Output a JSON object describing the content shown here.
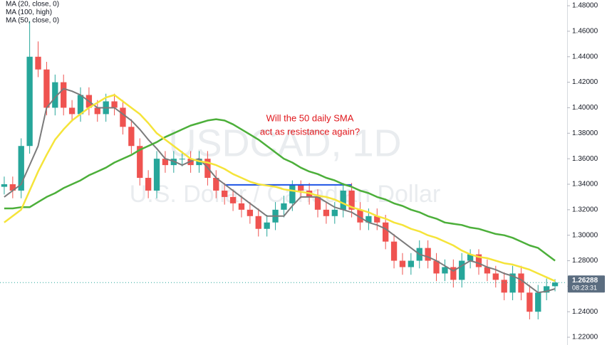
{
  "chart_data": {
    "type": "candlestick",
    "watermark": "USDCAD, 1D",
    "watermark_subtitle": "U.S. Dollar / Canadian Dollar",
    "annotation": [
      "Will the 50 daily SMA",
      "act as resistance again?"
    ],
    "annotation_color": "#e0161b",
    "up_color": "#26a69a",
    "down_color": "#ef5350",
    "open": [
      1.338,
      1.34,
      1.335,
      1.37,
      1.44,
      1.43,
      1.4,
      1.42,
      1.4,
      1.395,
      1.41,
      1.4,
      1.395,
      1.405,
      1.4,
      1.385,
      1.37,
      1.345,
      1.335,
      1.36,
      1.355,
      1.36,
      1.36,
      1.355,
      1.36,
      1.345,
      1.335,
      1.33,
      1.325,
      1.32,
      1.315,
      1.305,
      1.31,
      1.32,
      1.325,
      1.34,
      1.335,
      1.33,
      1.32,
      1.315,
      1.32,
      1.335,
      1.32,
      1.31,
      1.315,
      1.31,
      1.295,
      1.28,
      1.275,
      1.28,
      1.29,
      1.28,
      1.27,
      1.275,
      1.265,
      1.28,
      1.285,
      1.275,
      1.27,
      1.265,
      1.255,
      1.27,
      1.255,
      1.24,
      1.255,
      1.26
    ],
    "high": [
      1.346,
      1.346,
      1.376,
      1.468,
      1.452,
      1.436,
      1.426,
      1.426,
      1.406,
      1.416,
      1.416,
      1.406,
      1.411,
      1.411,
      1.406,
      1.391,
      1.376,
      1.351,
      1.366,
      1.366,
      1.366,
      1.366,
      1.366,
      1.366,
      1.366,
      1.351,
      1.341,
      1.336,
      1.331,
      1.326,
      1.321,
      1.316,
      1.326,
      1.331,
      1.343,
      1.343,
      1.341,
      1.336,
      1.326,
      1.326,
      1.341,
      1.341,
      1.326,
      1.321,
      1.321,
      1.316,
      1.301,
      1.286,
      1.286,
      1.296,
      1.296,
      1.286,
      1.281,
      1.281,
      1.286,
      1.289,
      1.289,
      1.281,
      1.276,
      1.271,
      1.276,
      1.276,
      1.261,
      1.261,
      1.266,
      1.2655
    ],
    "low": [
      1.332,
      1.329,
      1.329,
      1.364,
      1.424,
      1.394,
      1.394,
      1.394,
      1.389,
      1.389,
      1.394,
      1.389,
      1.389,
      1.394,
      1.379,
      1.364,
      1.339,
      1.329,
      1.329,
      1.349,
      1.349,
      1.354,
      1.349,
      1.349,
      1.339,
      1.329,
      1.324,
      1.319,
      1.314,
      1.309,
      1.299,
      1.299,
      1.304,
      1.314,
      1.319,
      1.329,
      1.324,
      1.314,
      1.309,
      1.309,
      1.314,
      1.314,
      1.304,
      1.304,
      1.304,
      1.289,
      1.274,
      1.269,
      1.269,
      1.274,
      1.274,
      1.264,
      1.264,
      1.259,
      1.259,
      1.274,
      1.269,
      1.264,
      1.259,
      1.249,
      1.249,
      1.249,
      1.234,
      1.234,
      1.249,
      1.256
    ],
    "close": [
      1.34,
      1.335,
      1.37,
      1.44,
      1.43,
      1.4,
      1.42,
      1.4,
      1.395,
      1.41,
      1.4,
      1.395,
      1.405,
      1.4,
      1.385,
      1.37,
      1.345,
      1.335,
      1.36,
      1.355,
      1.36,
      1.36,
      1.355,
      1.36,
      1.345,
      1.335,
      1.33,
      1.325,
      1.32,
      1.315,
      1.305,
      1.31,
      1.32,
      1.325,
      1.34,
      1.335,
      1.33,
      1.32,
      1.315,
      1.32,
      1.335,
      1.32,
      1.31,
      1.315,
      1.31,
      1.295,
      1.28,
      1.275,
      1.28,
      1.29,
      1.28,
      1.27,
      1.275,
      1.265,
      1.28,
      1.285,
      1.275,
      1.27,
      1.265,
      1.255,
      1.27,
      1.255,
      1.24,
      1.255,
      1.26,
      1.2629
    ],
    "series": [
      {
        "name": "MA (20, close, 0)",
        "color": "#7b7b7b",
        "values": [
          1.33,
          1.335,
          1.34,
          1.355,
          1.37,
          1.4,
          1.408,
          1.415,
          1.413,
          1.41,
          1.405,
          1.4,
          1.4,
          1.4,
          1.395,
          1.39,
          1.383,
          1.375,
          1.368,
          1.36,
          1.358,
          1.355,
          1.358,
          1.36,
          1.353,
          1.345,
          1.34,
          1.335,
          1.33,
          1.325,
          1.32,
          1.315,
          1.315,
          1.315,
          1.323,
          1.33,
          1.33,
          1.33,
          1.326,
          1.322,
          1.32,
          1.318,
          1.314,
          1.31,
          1.308,
          1.305,
          1.3,
          1.295,
          1.29,
          1.285,
          1.283,
          1.28,
          1.276,
          1.272,
          1.276,
          1.28,
          1.278,
          1.275,
          1.273,
          1.27,
          1.268,
          1.265,
          1.26,
          1.255,
          1.256,
          1.258
        ]
      },
      {
        "name": "MA (100, high)",
        "color": "#4caf3a",
        "values": [
          1.321,
          1.321,
          1.322,
          1.322,
          1.326,
          1.33,
          1.333,
          1.337,
          1.34,
          1.343,
          1.347,
          1.35,
          1.353,
          1.357,
          1.36,
          1.363,
          1.367,
          1.37,
          1.373,
          1.377,
          1.38,
          1.383,
          1.386,
          1.388,
          1.39,
          1.391,
          1.39,
          1.387,
          1.383,
          1.379,
          1.375,
          1.37,
          1.365,
          1.36,
          1.357,
          1.353,
          1.35,
          1.348,
          1.345,
          1.343,
          1.34,
          1.338,
          1.335,
          1.333,
          1.33,
          1.328,
          1.325,
          1.323,
          1.32,
          1.318,
          1.315,
          1.313,
          1.31,
          1.309,
          1.308,
          1.306,
          1.305,
          1.303,
          1.301,
          1.3,
          1.298,
          1.295,
          1.292,
          1.29,
          1.285,
          1.28
        ]
      },
      {
        "name": "MA (50, close, 0)",
        "color": "#f5e43a",
        "values": [
          1.31,
          1.315,
          1.32,
          1.335,
          1.35,
          1.363,
          1.375,
          1.383,
          1.39,
          1.395,
          1.4,
          1.404,
          1.408,
          1.41,
          1.405,
          1.4,
          1.395,
          1.388,
          1.38,
          1.375,
          1.37,
          1.365,
          1.36,
          1.358,
          1.357,
          1.355,
          1.352,
          1.348,
          1.345,
          1.342,
          1.34,
          1.339,
          1.338,
          1.336,
          1.335,
          1.334,
          1.333,
          1.331,
          1.33,
          1.328,
          1.325,
          1.322,
          1.32,
          1.318,
          1.315,
          1.313,
          1.31,
          1.308,
          1.305,
          1.303,
          1.3,
          1.298,
          1.295,
          1.292,
          1.288,
          1.285,
          1.283,
          1.282,
          1.28,
          1.278,
          1.277,
          1.275,
          1.273,
          1.27,
          1.267,
          1.264
        ]
      }
    ],
    "levels": [
      {
        "value": 1.3395,
        "from": 26,
        "to": 41,
        "color": "#1e53e5"
      }
    ],
    "last_price": {
      "value": 1.26288,
      "label": "1.26288"
    },
    "countdown": "08:23:31",
    "price_label_color": "#5b6d80",
    "ylim": [
      1.2139,
      1.4845
    ],
    "yticks": [
      {
        "value": 1.22,
        "label": "1.22000"
      },
      {
        "value": 1.24,
        "label": "1.24000"
      },
      {
        "value": 1.26,
        "label": "1.26000"
      },
      {
        "value": 1.28,
        "label": "1.28000"
      },
      {
        "value": 1.3,
        "label": "1.30000"
      },
      {
        "value": 1.32,
        "label": "1.32000"
      },
      {
        "value": 1.34,
        "label": "1.34000"
      },
      {
        "value": 1.36,
        "label": "1.36000"
      },
      {
        "value": 1.38,
        "label": "1.38000"
      },
      {
        "value": 1.4,
        "label": "1.40000"
      },
      {
        "value": 1.42,
        "label": "1.42000"
      },
      {
        "value": 1.44,
        "label": "1.44000"
      },
      {
        "value": 1.46,
        "label": "1.46000"
      },
      {
        "value": 1.48,
        "label": "1.48000"
      }
    ],
    "grid": false
  }
}
